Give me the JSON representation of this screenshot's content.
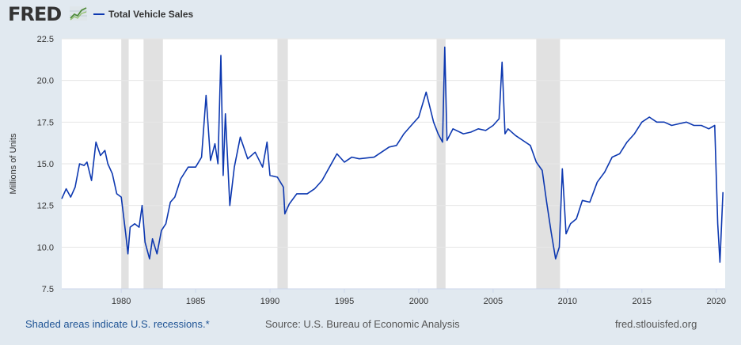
{
  "header": {
    "logo_text": "FRED",
    "logo_icon": "line-chart-icon",
    "legend_label": "Total Vehicle Sales",
    "series_color": "#0d38b0"
  },
  "footer": {
    "note": "Shaded areas indicate U.S. recessions.*",
    "source": "Source: U.S. Bureau of Economic Analysis",
    "site": "fred.stlouisfed.org"
  },
  "chart_data": {
    "type": "line",
    "title": "",
    "xlabel": "",
    "ylabel": "Millions of Units",
    "xlim": [
      1976.0,
      2020.6
    ],
    "ylim": [
      7.5,
      22.5
    ],
    "yticks": [
      "7.5",
      "10.0",
      "12.5",
      "15.0",
      "17.5",
      "20.0",
      "22.5"
    ],
    "xticks": [
      "1980",
      "1985",
      "1990",
      "1995",
      "2000",
      "2005",
      "2010",
      "2015",
      "2020"
    ],
    "grid": true,
    "recessions": [
      [
        1980.0,
        1980.5
      ],
      [
        1981.5,
        1982.8
      ],
      [
        1990.5,
        1991.2
      ],
      [
        2001.2,
        2001.8
      ],
      [
        2007.9,
        2009.5
      ]
    ],
    "series": [
      {
        "name": "Total Vehicle Sales",
        "x": [
          1976.0,
          1976.3,
          1976.6,
          1976.9,
          1977.2,
          1977.5,
          1977.7,
          1978.0,
          1978.3,
          1978.6,
          1978.9,
          1979.1,
          1979.4,
          1979.7,
          1980.0,
          1980.3,
          1980.45,
          1980.6,
          1980.9,
          1981.2,
          1981.4,
          1981.6,
          1981.9,
          1982.1,
          1982.4,
          1982.7,
          1983.0,
          1983.3,
          1983.6,
          1984.0,
          1984.5,
          1985.0,
          1985.4,
          1985.7,
          1986.0,
          1986.3,
          1986.5,
          1986.7,
          1986.85,
          1987.0,
          1987.3,
          1987.6,
          1988.0,
          1988.5,
          1989.0,
          1989.5,
          1989.8,
          1990.0,
          1990.5,
          1990.9,
          1991.0,
          1991.3,
          1991.8,
          1992.5,
          1993.0,
          1993.5,
          1994.0,
          1994.5,
          1995.0,
          1995.5,
          1996.0,
          1997.0,
          1998.0,
          1998.5,
          1999.0,
          1999.5,
          2000.0,
          2000.5,
          2001.0,
          2001.3,
          2001.6,
          2001.75,
          2001.9,
          2002.3,
          2003.0,
          2003.5,
          2004.0,
          2004.5,
          2005.0,
          2005.4,
          2005.6,
          2005.8,
          2006.0,
          2006.5,
          2007.0,
          2007.5,
          2007.9,
          2008.3,
          2008.6,
          2008.9,
          2009.2,
          2009.45,
          2009.65,
          2009.9,
          2010.2,
          2010.6,
          2011.0,
          2011.5,
          2012.0,
          2012.5,
          2013.0,
          2013.5,
          2014.0,
          2014.5,
          2015.0,
          2015.5,
          2016.0,
          2016.5,
          2017.0,
          2017.5,
          2018.0,
          2018.5,
          2019.0,
          2019.5,
          2019.9,
          2020.1,
          2020.25,
          2020.45
        ],
        "values": [
          12.9,
          13.5,
          13.0,
          13.6,
          15.0,
          14.9,
          15.1,
          14.0,
          16.3,
          15.5,
          15.8,
          15.0,
          14.4,
          13.2,
          13.0,
          10.8,
          9.6,
          11.2,
          11.4,
          11.2,
          12.5,
          10.3,
          9.3,
          10.5,
          9.6,
          11.0,
          11.4,
          12.7,
          13.0,
          14.1,
          14.8,
          14.8,
          15.4,
          19.1,
          15.2,
          16.2,
          15.0,
          21.5,
          14.3,
          18.0,
          12.5,
          14.8,
          16.6,
          15.3,
          15.7,
          14.8,
          16.3,
          14.3,
          14.2,
          13.6,
          12.0,
          12.6,
          13.2,
          13.2,
          13.5,
          14.0,
          14.8,
          15.6,
          15.1,
          15.4,
          15.3,
          15.4,
          16.0,
          16.1,
          16.8,
          17.3,
          17.8,
          19.3,
          17.5,
          16.8,
          16.3,
          22.0,
          16.4,
          17.1,
          16.8,
          16.9,
          17.1,
          17.0,
          17.3,
          17.7,
          21.1,
          16.8,
          17.1,
          16.7,
          16.4,
          16.1,
          15.1,
          14.6,
          12.7,
          10.9,
          9.3,
          10.0,
          14.7,
          10.8,
          11.4,
          11.7,
          12.8,
          12.7,
          13.9,
          14.5,
          15.4,
          15.6,
          16.3,
          16.8,
          17.5,
          17.8,
          17.5,
          17.5,
          17.3,
          17.4,
          17.5,
          17.3,
          17.3,
          17.1,
          17.3,
          11.4,
          9.1,
          13.3
        ]
      }
    ]
  }
}
